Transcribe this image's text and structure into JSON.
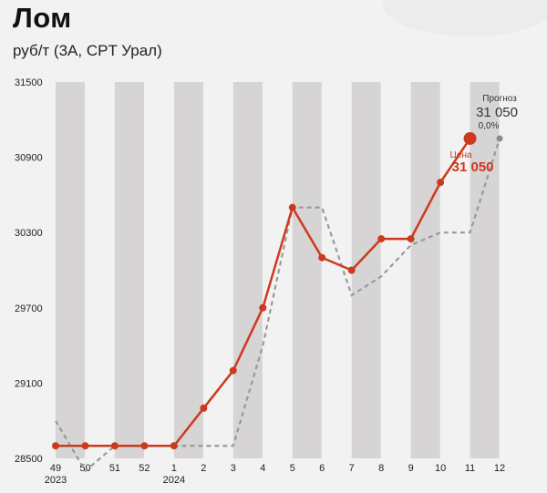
{
  "header": {
    "title": "Лом",
    "subtitle": "руб/т (3А, CPT Урал)"
  },
  "colors": {
    "price": "#cc3a1e",
    "forecast": "#999999",
    "band": "#d6d4d4",
    "background": "#f2f2f2"
  },
  "chart_data": {
    "type": "line",
    "title": "Лом",
    "subtitle": "руб/т (3А, CPT Урал)",
    "ylim": [
      28500,
      31500
    ],
    "yticks": [
      28500,
      29100,
      29700,
      30300,
      30900,
      31500
    ],
    "ytick_labels": [
      "28500",
      "29100",
      "29700",
      "30300",
      "30900",
      "31500"
    ],
    "categories": [
      "49",
      "50",
      "51",
      "52",
      "1",
      "2",
      "3",
      "4",
      "5",
      "6",
      "7",
      "8",
      "9",
      "10",
      "11",
      "12"
    ],
    "year_labels": [
      {
        "index": 0,
        "label": "2023"
      },
      {
        "index": 4,
        "label": "2024"
      }
    ],
    "grid": "alternating vertical bands",
    "series": [
      {
        "name": "Цена",
        "style": "solid",
        "values": [
          28600,
          28600,
          28600,
          28600,
          28600,
          28900,
          29200,
          29700,
          30500,
          30100,
          30000,
          30250,
          30250,
          30700,
          31050,
          null
        ]
      },
      {
        "name": "Прогноз",
        "style": "dashed",
        "values": [
          28800,
          28400,
          28600,
          28600,
          28600,
          28600,
          28600,
          29400,
          30500,
          30500,
          29800,
          29950,
          30200,
          30300,
          30300,
          31050
        ]
      }
    ],
    "annotations": {
      "forecast": {
        "label": "Прогноз",
        "value": "31 050",
        "change": "0,0%"
      },
      "price": {
        "label": "Цена",
        "value": "31 050"
      }
    }
  }
}
